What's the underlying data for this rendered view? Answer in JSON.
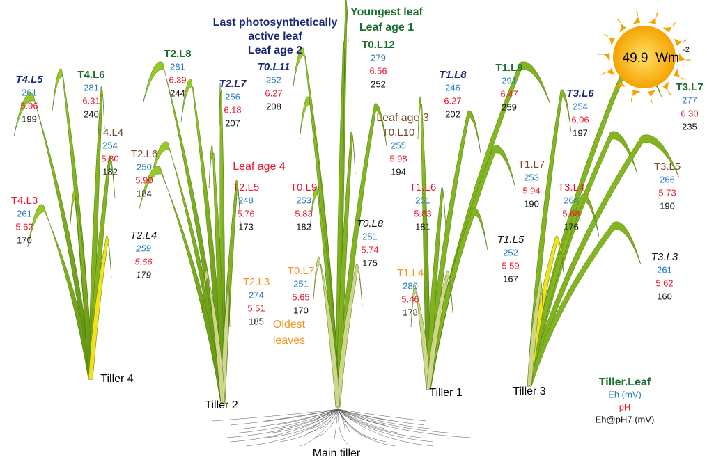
{
  "leaves": [
    {
      "name": "T4.L5",
      "eh": "261",
      "ph": "5.96",
      "eh_ph7": "199"
    },
    {
      "name": "T4.L6",
      "eh": "281",
      "ph": "6.31",
      "eh_ph7": "240"
    },
    {
      "name": "T4.L4",
      "eh": "254",
      "ph": "5.80",
      "eh_ph7": "182"
    },
    {
      "name": "T4.L3",
      "eh": "261",
      "ph": "5.62",
      "eh_ph7": "170"
    },
    {
      "name": "T2.L8",
      "eh": "281",
      "ph": "6.39",
      "eh_ph7": "244"
    },
    {
      "name": "T2.L7",
      "eh": "256",
      "ph": "6.18",
      "eh_ph7": "207"
    },
    {
      "name": "T2.L6",
      "eh": "250",
      "ph": "5.90",
      "eh_ph7": "184"
    },
    {
      "name": "T2.L5",
      "eh": "248",
      "ph": "5.76",
      "eh_ph7": "173"
    },
    {
      "name": "T2.L4",
      "eh": "259",
      "ph": "5.66",
      "eh_ph7": "179"
    },
    {
      "name": "T2.L3",
      "eh": "274",
      "ph": "5.51",
      "eh_ph7": "185"
    },
    {
      "name": "T0.L11",
      "eh": "252",
      "ph": "6.27",
      "eh_ph7": "208"
    },
    {
      "name": "T0.L12",
      "eh": "279",
      "ph": "6.56",
      "eh_ph7": "252"
    },
    {
      "name": "T0.L10",
      "eh": "255",
      "ph": "5.98",
      "eh_ph7": "194"
    },
    {
      "name": "T0.L9",
      "eh": "253",
      "ph": "5.83",
      "eh_ph7": "182"
    },
    {
      "name": "T0.L8",
      "eh": "251",
      "ph": "5.74",
      "eh_ph7": "175"
    },
    {
      "name": "T0.L7",
      "eh": "251",
      "ph": "5.65",
      "eh_ph7": "170"
    },
    {
      "name": "T1.L8",
      "eh": "246",
      "ph": "6.27",
      "eh_ph7": "202"
    },
    {
      "name": "T1.L9",
      "eh": "291",
      "ph": "6.47",
      "eh_ph7": "259"
    },
    {
      "name": "T1.L7",
      "eh": "253",
      "ph": "5.94",
      "eh_ph7": "190"
    },
    {
      "name": "T1.L6",
      "eh": "251",
      "ph": "5.83",
      "eh_ph7": "181"
    },
    {
      "name": "T1.L5",
      "eh": "252",
      "ph": "5.59",
      "eh_ph7": "167"
    },
    {
      "name": "T1.L4",
      "eh": "280",
      "ph": "5.46",
      "eh_ph7": "178"
    },
    {
      "name": "T3.L6",
      "eh": "254",
      "ph": "6.06",
      "eh_ph7": "197"
    },
    {
      "name": "T3.L7",
      "eh": "277",
      "ph": "6.30",
      "eh_ph7": "235"
    },
    {
      "name": "T3.L4",
      "eh": "264",
      "ph": "5.68",
      "eh_ph7": "176"
    },
    {
      "name": "T3.L5",
      "eh": "266",
      "ph": "5.73",
      "eh_ph7": "190"
    },
    {
      "name": "T3.L3",
      "eh": "261",
      "ph": "5.62",
      "eh_ph7": "160"
    }
  ],
  "annotations": {
    "last_active": [
      "Last photosynthetically",
      "active leaf",
      "Leaf age 2"
    ],
    "youngest": [
      "Youngest leaf",
      "Leaf age 1"
    ],
    "leaf_age_3": "Leaf age 3",
    "leaf_age_4": "Leaf age 4",
    "oldest": [
      "Oldest",
      "leaves"
    ]
  },
  "tillers": [
    "Tiller 4",
    "Tiller 2",
    "Main tiller",
    "Tiller 1",
    "Tiller 3"
  ],
  "sun": {
    "value": "49.9",
    "unit": "Wm",
    "exponent": "-2"
  },
  "legend": {
    "title": "Tiller.Leaf",
    "eh": "Eh (mV)",
    "ph": "pH",
    "eh_ph7": "Eh@pH7 (mV)"
  }
}
